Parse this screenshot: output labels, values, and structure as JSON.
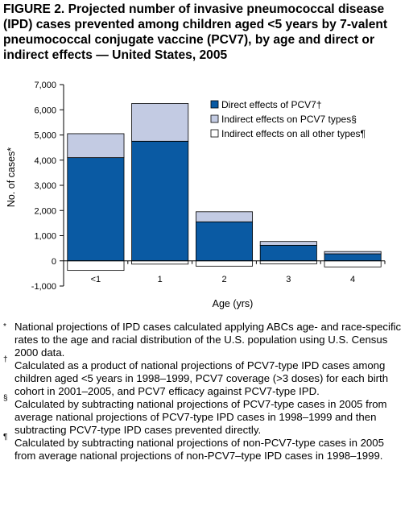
{
  "title": "FIGURE 2. Projected number of invasive pneumococcal disease (IPD) cases prevented among children aged <5 years by 7-valent pneumococcal conjugate vaccine (PCV7), by age and direct or indirect effects — United States, 2005",
  "chart_data": {
    "type": "bar",
    "stacked": true,
    "categories": [
      "<1",
      "1",
      "2",
      "3",
      "4"
    ],
    "series": [
      {
        "name": "Direct effects of PCV7†",
        "color": "#0a5aa3",
        "values": [
          4100,
          4750,
          1550,
          620,
          280
        ]
      },
      {
        "name": "Indirect effects on PCV7 types§",
        "color": "#c3cbe3",
        "values": [
          950,
          1500,
          400,
          150,
          90
        ]
      },
      {
        "name": "Indirect effects on all other types¶",
        "color": "#ffffff",
        "values": [
          -380,
          -130,
          -210,
          -120,
          -240
        ]
      }
    ],
    "xlabel": "Age (yrs)",
    "ylabel": "No. of cases*",
    "ylim": [
      -1000,
      7000
    ],
    "yticks": [
      -1000,
      0,
      1000,
      2000,
      3000,
      4000,
      5000,
      6000,
      7000
    ],
    "ytick_labels": [
      "-1,000",
      "0",
      "1,000",
      "2,000",
      "3,000",
      "4,000",
      "5,000",
      "6,000",
      "7,000"
    ],
    "legend_position": "right",
    "grid": false
  },
  "footnotes": [
    {
      "mark": "*",
      "text": "National projections of IPD cases calculated applying ABCs age- and race-specific rates to the age and racial distribution of the U.S. population using U.S. Census 2000 data."
    },
    {
      "mark": "†",
      "text": "Calculated as a product of national projections of PCV7-type IPD cases among children aged <5 years in 1998–1999, PCV7 coverage (>3 doses) for each birth cohort in 2001–2005, and PCV7 efficacy against PCV7-type IPD."
    },
    {
      "mark": "§",
      "text": "Calculated by subtracting national projections of PCV7-type cases in 2005 from average national projections of PCV7-type IPD cases in 1998–1999 and then subtracting PCV7-type IPD cases prevented directly."
    },
    {
      "mark": "¶",
      "text": "Calculated by subtracting national projections of non-PCV7-type cases in 2005 from average national projections of non-PCV7–type IPD cases in 1998–1999."
    }
  ]
}
